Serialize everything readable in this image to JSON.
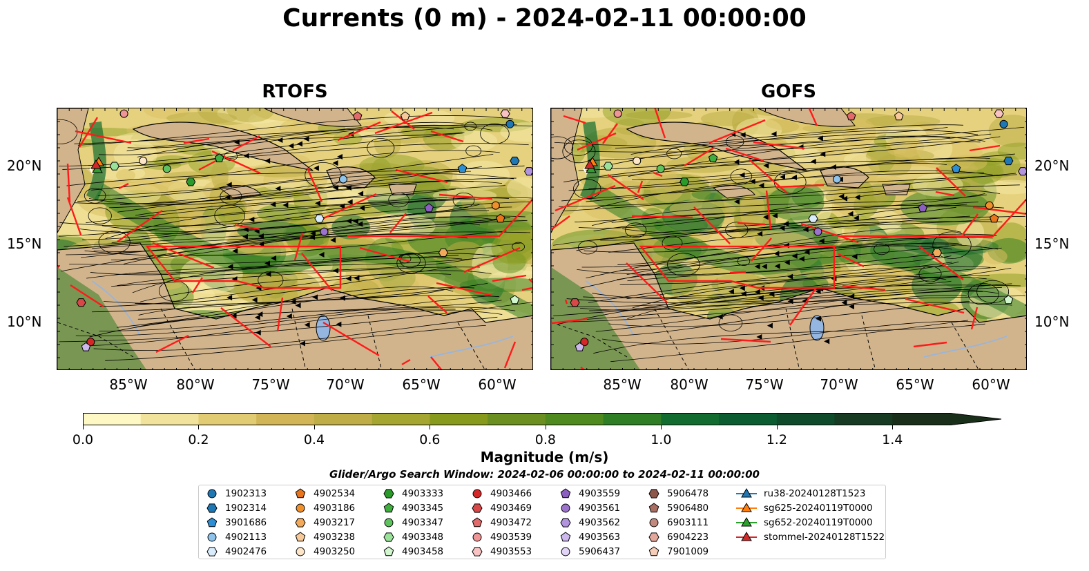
{
  "figure": {
    "title": "Currents (0 m) - 2024-02-11 00:00:00",
    "panels": [
      {
        "title": "RTOFS"
      },
      {
        "title": "GOFS"
      }
    ],
    "lon_ticks": [
      "85°W",
      "80°W",
      "75°W",
      "70°W",
      "65°W",
      "60°W"
    ],
    "lat_ticks": [
      "20°N",
      "15°N",
      "10°N"
    ],
    "colorbar": {
      "label": "Magnitude (m/s)",
      "ticks": [
        "0.0",
        "0.2",
        "0.4",
        "0.6",
        "0.8",
        "1.0",
        "1.2",
        "1.4"
      ],
      "range": [
        0,
        1.5
      ],
      "colors": [
        "#fdf8c4",
        "#f1e39b",
        "#e1cc74",
        "#d1b556",
        "#bfae47",
        "#a5a532",
        "#889a1e",
        "#6b8f20",
        "#4f8a1f",
        "#2f7d25",
        "#136c2f",
        "#0c5c31",
        "#0f4a2b",
        "#163a22",
        "#1a2f1a"
      ]
    },
    "search_window": "Glider/Argo Search Window: 2024-02-06 00:00:00 to 2024-02-11 00:00:00"
  },
  "legend": [
    {
      "label": "1902313",
      "marker": "circle",
      "color": "#1f77b4"
    },
    {
      "label": "1902314",
      "marker": "hexagon",
      "color": "#1f77b4"
    },
    {
      "label": "3901686",
      "marker": "pentagon",
      "color": "#2c8fd6"
    },
    {
      "label": "4902113",
      "marker": "circle",
      "color": "#8ec3ec"
    },
    {
      "label": "4902476",
      "marker": "hexagon",
      "color": "#d8ecfb"
    },
    {
      "label": "4902534",
      "marker": "pentagon",
      "color": "#e8741b"
    },
    {
      "label": "4903186",
      "marker": "circle",
      "color": "#f0902a"
    },
    {
      "label": "4903217",
      "marker": "hexagon",
      "color": "#f3a95a"
    },
    {
      "label": "4903238",
      "marker": "pentagon",
      "color": "#f8c998"
    },
    {
      "label": "4903250",
      "marker": "circle",
      "color": "#fde5c8"
    },
    {
      "label": "4903333",
      "marker": "hexagon",
      "color": "#2a9a2a"
    },
    {
      "label": "4903345",
      "marker": "pentagon",
      "color": "#3fae3f"
    },
    {
      "label": "4903347",
      "marker": "circle",
      "color": "#5ec25e"
    },
    {
      "label": "4903348",
      "marker": "hexagon",
      "color": "#9ae29a"
    },
    {
      "label": "4903458",
      "marker": "pentagon",
      "color": "#d2f7cf"
    },
    {
      "label": "4903466",
      "marker": "circle",
      "color": "#d62728"
    },
    {
      "label": "4903469",
      "marker": "hexagon",
      "color": "#d84848"
    },
    {
      "label": "4903472",
      "marker": "pentagon",
      "color": "#e26a6a"
    },
    {
      "label": "4903539",
      "marker": "circle",
      "color": "#f09595"
    },
    {
      "label": "4903553",
      "marker": "hexagon",
      "color": "#fac3c3"
    },
    {
      "label": "4903559",
      "marker": "pentagon",
      "color": "#8a5fc0"
    },
    {
      "label": "4903561",
      "marker": "circle",
      "color": "#9b73cc"
    },
    {
      "label": "4903562",
      "marker": "hexagon",
      "color": "#b294de"
    },
    {
      "label": "4903563",
      "marker": "pentagon",
      "color": "#cdb8ee"
    },
    {
      "label": "5906437",
      "marker": "circle",
      "color": "#e2d4f7"
    },
    {
      "label": "5906478",
      "marker": "hexagon",
      "color": "#8c564b"
    },
    {
      "label": "5906480",
      "marker": "pentagon",
      "color": "#a86e62"
    },
    {
      "label": "6903111",
      "marker": "circle",
      "color": "#c28a7e"
    },
    {
      "label": "6904223",
      "marker": "hexagon",
      "color": "#e3a89c"
    },
    {
      "label": "7901009",
      "marker": "pentagon",
      "color": "#f6cdb8"
    },
    {
      "label": "ru38-20240128T1523",
      "marker": "triangle",
      "color": "#1f77b4"
    },
    {
      "label": "sg625-20240119T0000",
      "marker": "triangle",
      "color": "#ff7f0e"
    },
    {
      "label": "sg652-20240119T0000",
      "marker": "triangle",
      "color": "#2ca02c"
    },
    {
      "label": "stommel-20240128T1522",
      "marker": "triangle",
      "color": "#d62728"
    }
  ]
}
